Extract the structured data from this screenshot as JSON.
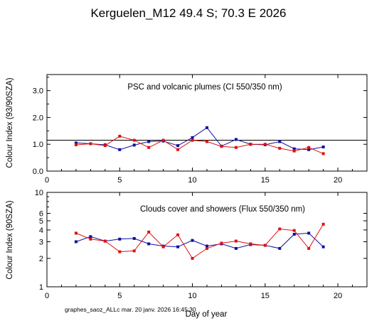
{
  "title": "Kerguelen_M12  49.4 S; 70.3 E    2026",
  "footer": "graphes_saoz_ALLc  mar. 20 janv. 2026 16:45:30",
  "xlabel": "Day of year",
  "colors": {
    "blue": "#1010a0",
    "red": "#e01010",
    "axis": "#000000"
  },
  "chart_data": [
    {
      "type": "line",
      "annotation": "PSC and volcanic plumes (CI 550/350 nm)",
      "ylabel": "Colour Index (93/90SZA)",
      "xlim": [
        0,
        22
      ],
      "ylim": [
        0,
        3.6
      ],
      "x_ticks": [
        0,
        5,
        10,
        15,
        20
      ],
      "y_ticks": [
        0.0,
        1.0,
        2.0,
        3.0
      ],
      "y_tick_labels": [
        "0.0",
        "1.0",
        "2.0",
        "3.0"
      ],
      "reference_line": 1.15,
      "yscale": "linear",
      "series": [
        {
          "color": "blue",
          "x": [
            2,
            3,
            4,
            5,
            6,
            7,
            8,
            9,
            10,
            11,
            12,
            13,
            14,
            15,
            16,
            17,
            18,
            19
          ],
          "values": [
            1.05,
            1.02,
            0.98,
            0.8,
            0.97,
            1.1,
            1.12,
            0.95,
            1.25,
            1.62,
            0.93,
            1.18,
            1.0,
            0.98,
            1.1,
            0.83,
            0.8,
            0.9
          ]
        },
        {
          "color": "red",
          "x": [
            2,
            3,
            4,
            5,
            6,
            7,
            8,
            9,
            10,
            11,
            12,
            13,
            14,
            15,
            16,
            17,
            18,
            19
          ],
          "values": [
            0.98,
            1.02,
            0.95,
            1.3,
            1.15,
            0.88,
            1.15,
            0.8,
            1.15,
            1.1,
            0.92,
            0.88,
            1.0,
            1.0,
            0.85,
            0.75,
            0.88,
            0.65
          ]
        }
      ]
    },
    {
      "type": "line",
      "annotation": "Clouds cover and showers (Flux 550/350 nm)",
      "ylabel": "Colour Index (90SZA)",
      "xlim": [
        0,
        22
      ],
      "ylim": [
        1,
        10
      ],
      "x_ticks": [
        0,
        5,
        10,
        15,
        20
      ],
      "y_ticks": [
        1,
        2,
        3,
        4,
        5,
        6,
        10
      ],
      "y_tick_labels": [
        "1",
        "2",
        "3",
        "4",
        "5",
        "6",
        "10"
      ],
      "yscale": "log",
      "series": [
        {
          "color": "blue",
          "x": [
            2,
            3,
            4,
            5,
            6,
            7,
            8,
            9,
            10,
            11,
            12,
            13,
            14,
            15,
            16,
            17,
            18,
            19
          ],
          "values": [
            3.0,
            3.4,
            3.05,
            3.2,
            3.25,
            2.85,
            2.7,
            2.65,
            3.1,
            2.7,
            2.85,
            2.55,
            2.8,
            2.75,
            2.55,
            3.6,
            3.7,
            2.65
          ]
        },
        {
          "color": "red",
          "x": [
            2,
            3,
            4,
            5,
            6,
            7,
            8,
            9,
            10,
            11,
            12,
            13,
            14,
            15,
            16,
            17,
            18,
            19
          ],
          "values": [
            3.7,
            3.2,
            3.05,
            2.35,
            2.4,
            3.8,
            2.65,
            3.55,
            2.0,
            2.55,
            2.9,
            3.05,
            2.85,
            2.75,
            4.1,
            3.95,
            2.55,
            4.6
          ]
        }
      ]
    }
  ]
}
